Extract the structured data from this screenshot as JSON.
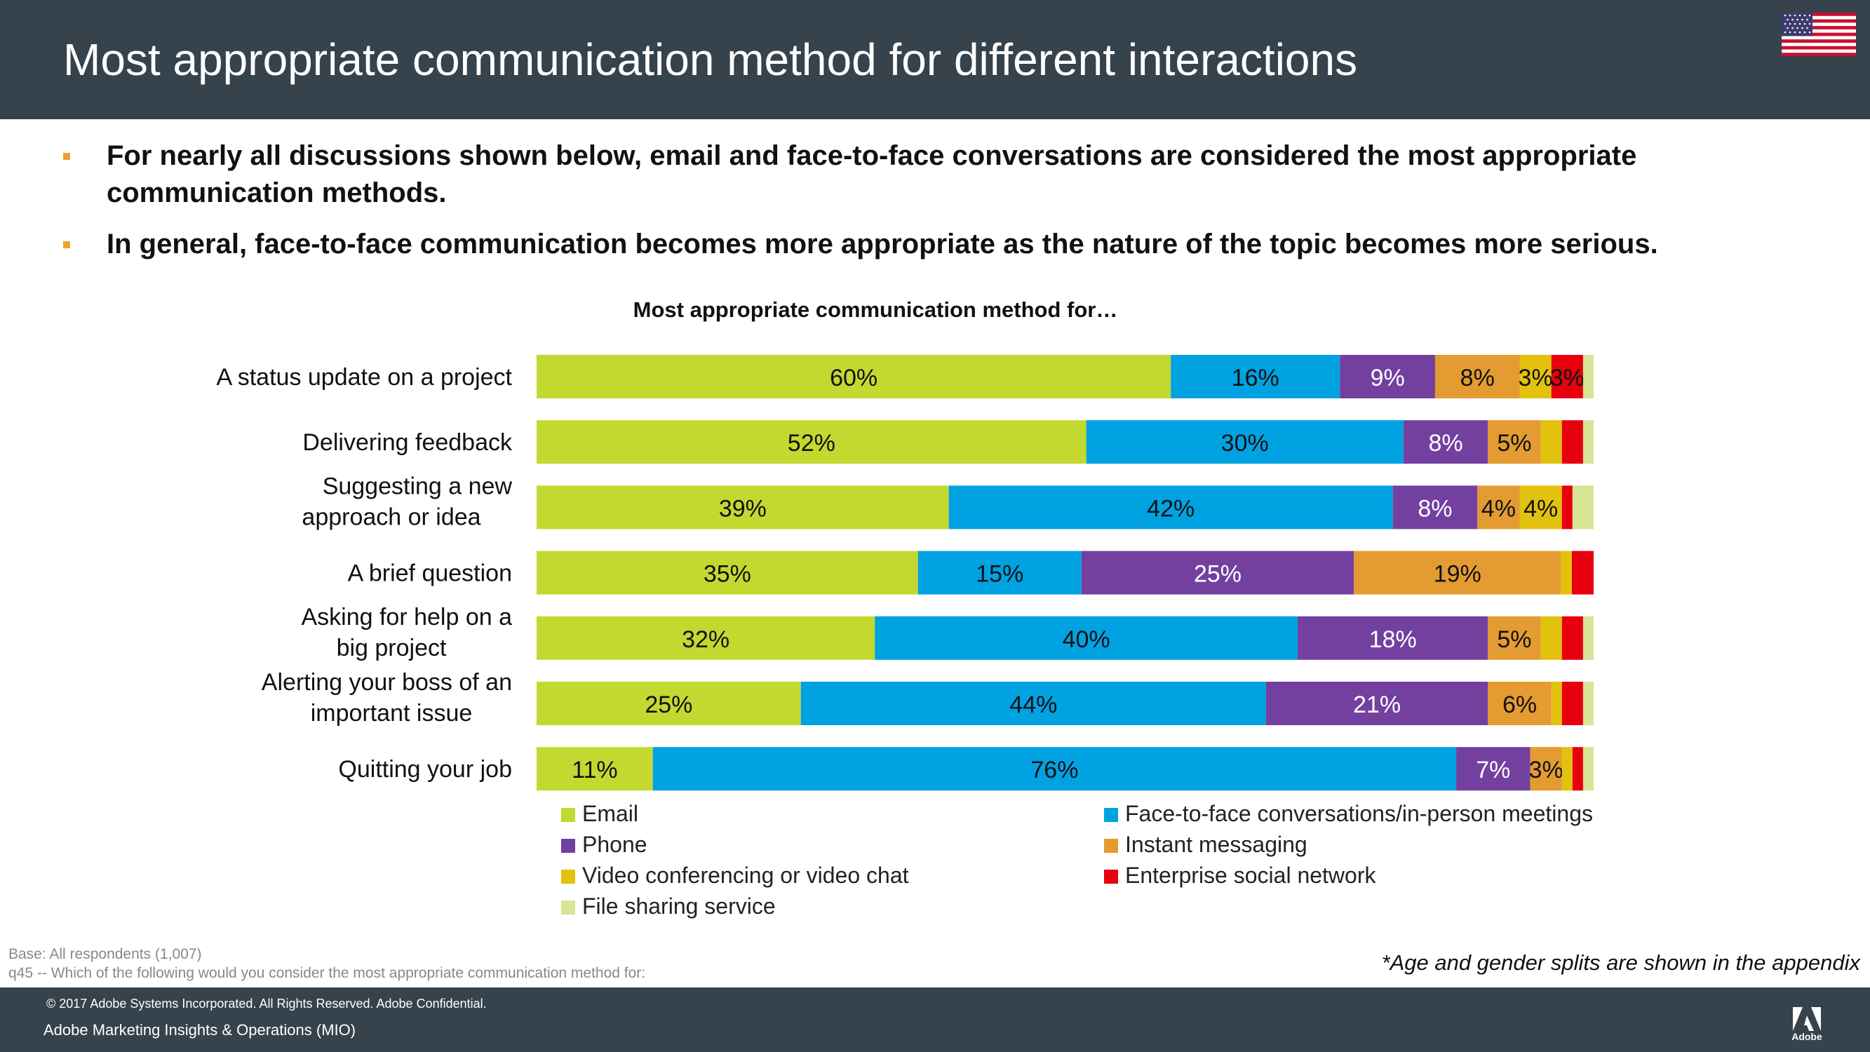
{
  "header": {
    "title": "Most appropriate communication method for different interactions"
  },
  "bullets": [
    "For nearly all discussions shown below, email and face-to-face conversations are considered the most appropriate communication methods.",
    "In general, face-to-face communication becomes more appropriate as the nature of the topic becomes more serious."
  ],
  "colors": {
    "header_bg": "#36424c",
    "bullet_accent": "#f0a030"
  },
  "chart_data": {
    "type": "bar",
    "orientation": "horizontal-stacked-100",
    "title": "Most appropriate communication method for…",
    "categories": [
      "A status update on a project",
      "Delivering feedback",
      "Suggesting a new approach or idea",
      "A brief question",
      "Asking for help on a big project",
      "Alerting your boss of an important issue",
      "Quitting your job"
    ],
    "series": [
      {
        "name": "Email",
        "color": "#c3d92f",
        "values": [
          60,
          52,
          39,
          35,
          32,
          25,
          11
        ]
      },
      {
        "name": "Face-to-face conversations/in-person meetings",
        "color": "#00a2e2",
        "values": [
          16,
          30,
          42,
          15,
          40,
          44,
          76
        ]
      },
      {
        "name": "Phone",
        "color": "#7340a0",
        "values": [
          9,
          8,
          8,
          25,
          18,
          21,
          7
        ]
      },
      {
        "name": "Instant messaging",
        "color": "#e39b32",
        "values": [
          8,
          5,
          4,
          19,
          5,
          6,
          3
        ]
      },
      {
        "name": "Video conferencing or video chat",
        "color": "#e3c10f",
        "values": [
          3,
          2,
          4,
          1,
          2,
          1,
          1
        ]
      },
      {
        "name": "Enterprise social network",
        "color": "#e8000e",
        "values": [
          3,
          2,
          1,
          2,
          2,
          2,
          1
        ]
      },
      {
        "name": "File sharing service",
        "color": "#d6e596",
        "values": [
          1,
          1,
          2,
          0,
          1,
          1,
          1
        ]
      }
    ],
    "label_threshold": 3,
    "legend": "bottom"
  },
  "legend_labels": [
    "Email",
    "Face-to-face conversations/in-person meetings",
    "Phone",
    "Instant messaging",
    "Video conferencing or video chat",
    "Enterprise social network",
    "File sharing service"
  ],
  "footnote": {
    "base": "Base: All respondents (1,007)",
    "question": "q45 --  Which of the following would you consider the most appropriate communication method for:",
    "note": "*Age and gender splits are shown in the appendix"
  },
  "footer": {
    "copyright": "© 2017 Adobe Systems Incorporated.  All Rights Reserved.  Adobe Confidential.",
    "mio": "Adobe Marketing Insights & Operations (MIO)",
    "logo_text": "Adobe"
  }
}
